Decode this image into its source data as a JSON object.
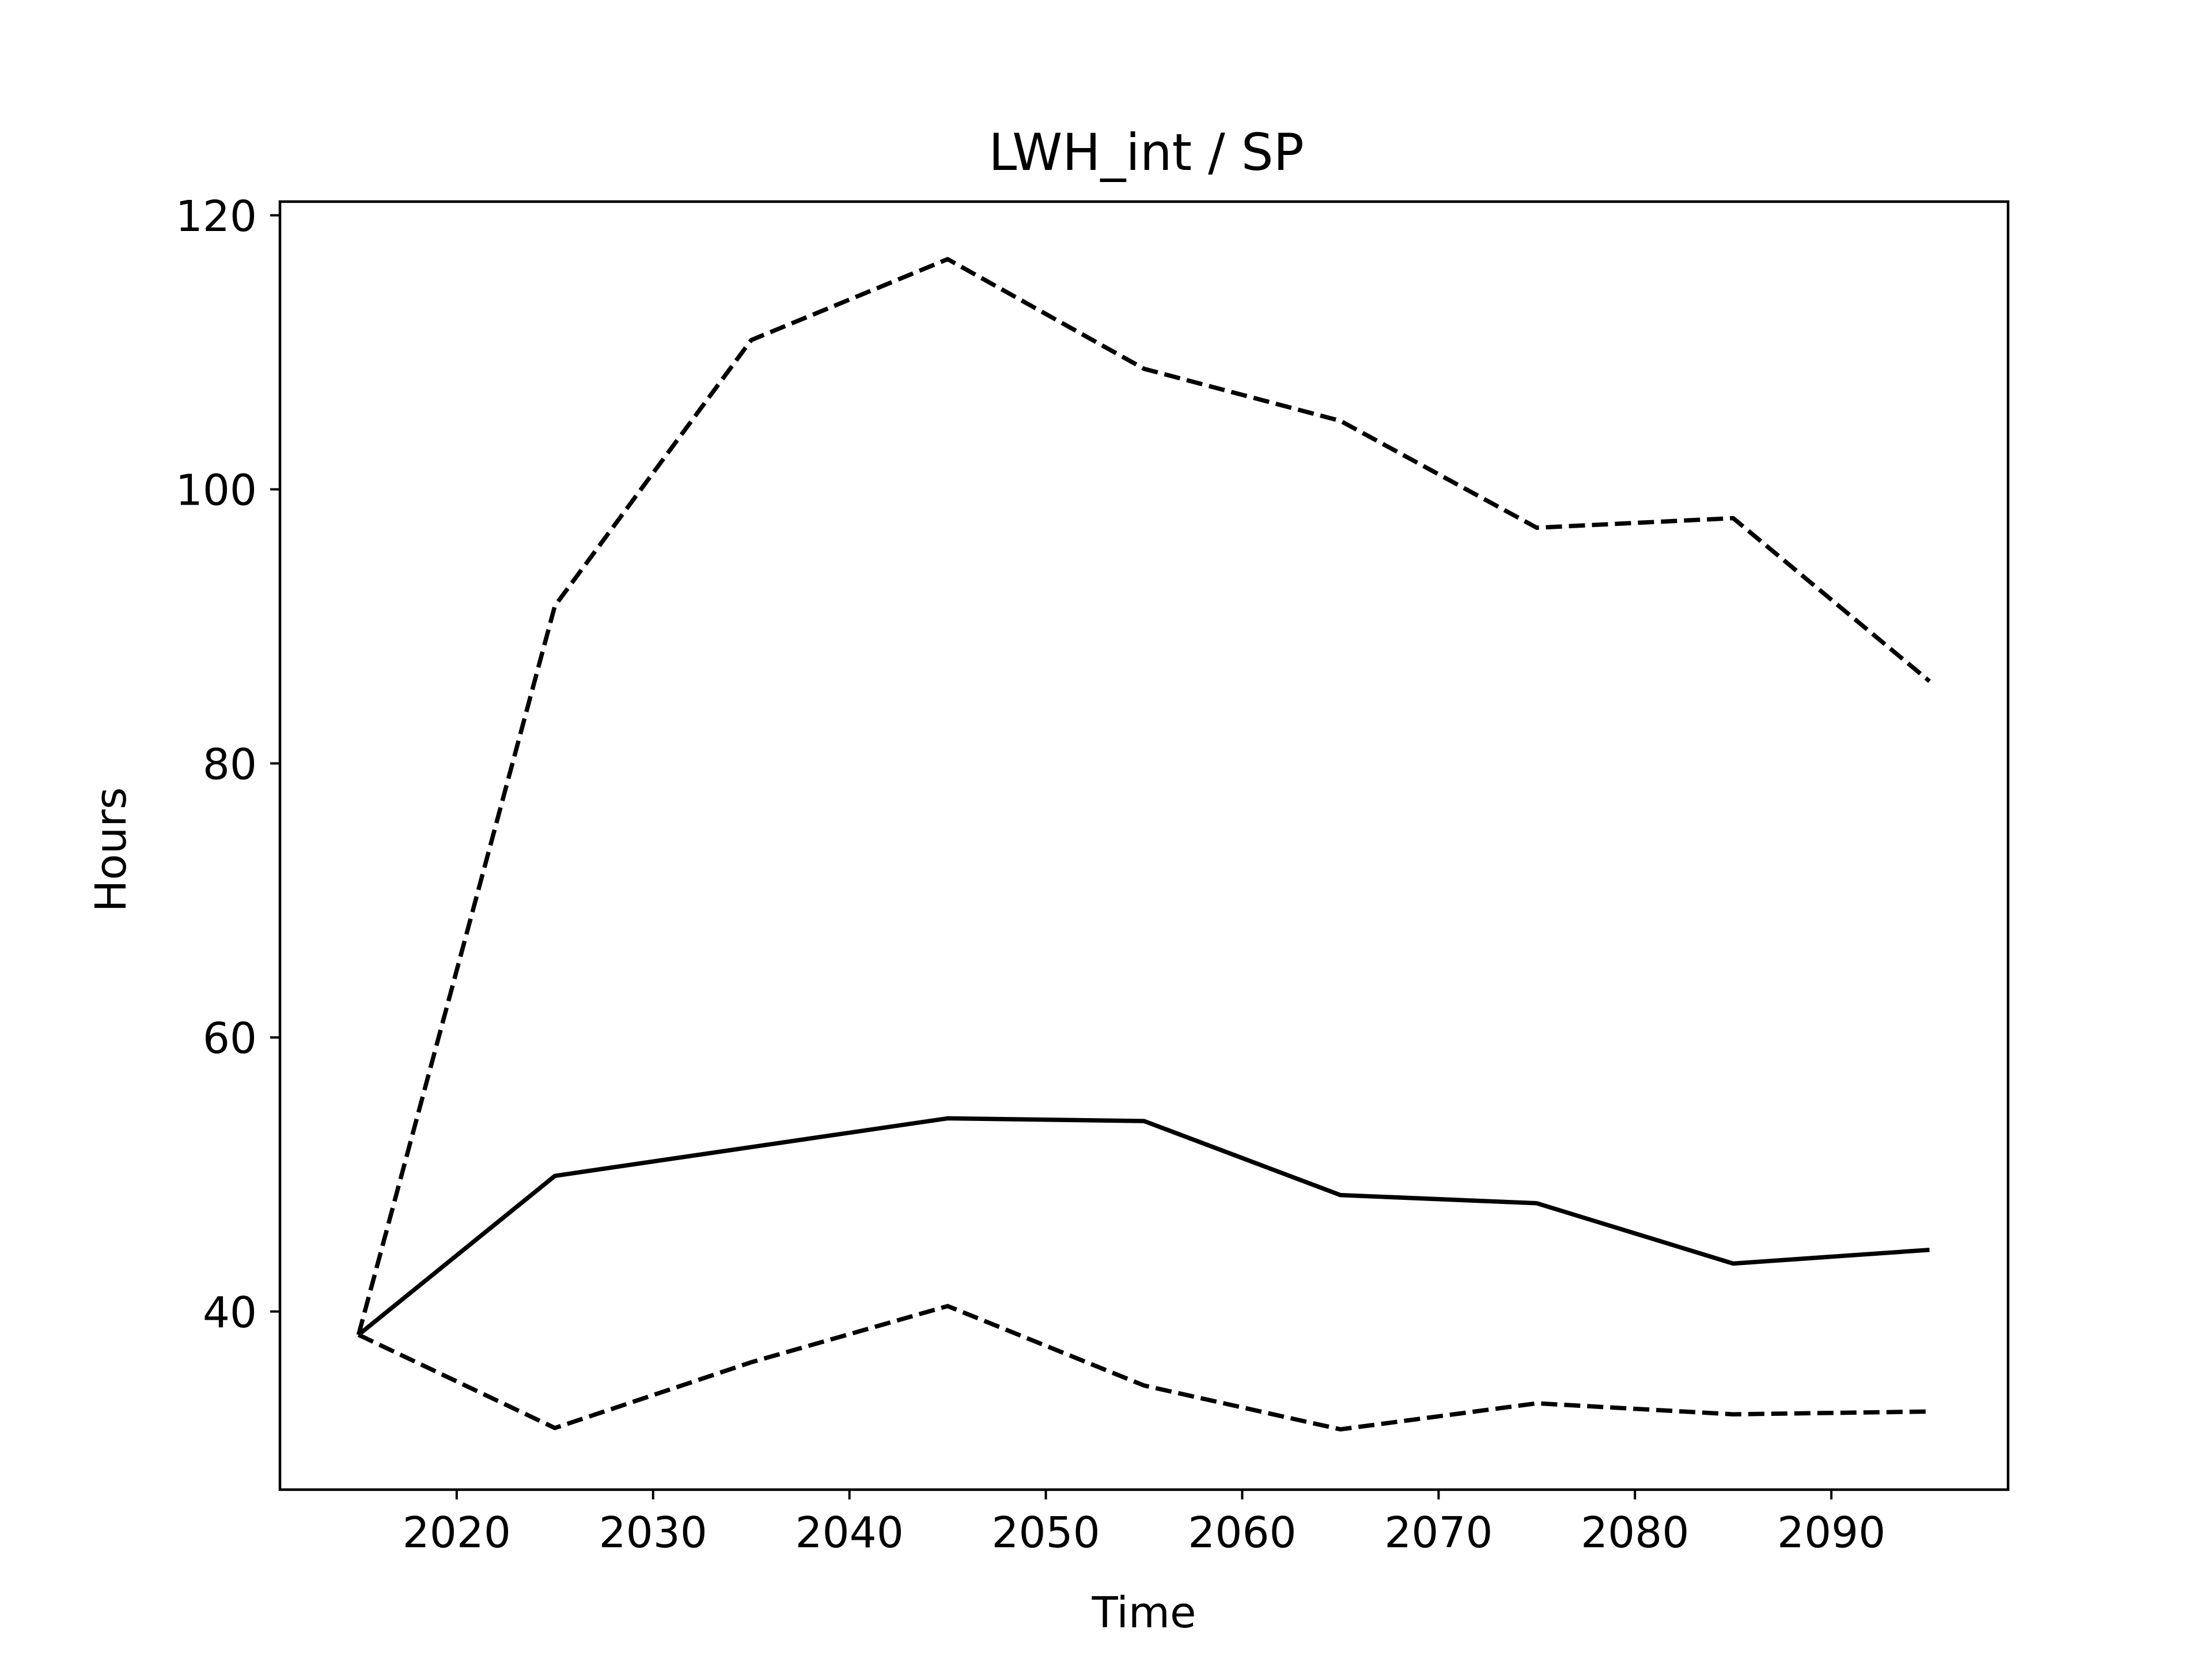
{
  "chart_data": {
    "type": "line",
    "title": "LWH_int / SP",
    "xlabel": "Time",
    "ylabel": "Hours",
    "xlim": [
      2011,
      2099
    ],
    "ylim": [
      27,
      121
    ],
    "xticks": [
      2020,
      2030,
      2040,
      2050,
      2060,
      2070,
      2080,
      2090
    ],
    "yticks": [
      40,
      60,
      80,
      100,
      120
    ],
    "grid": false,
    "legend": "none",
    "line_color": "#000000",
    "x": [
      2015,
      2025,
      2035,
      2045,
      2055,
      2065,
      2075,
      2085,
      2095
    ],
    "series": [
      {
        "style": "solid",
        "values": [
          38.3,
          49.9,
          52.0,
          54.1,
          53.9,
          48.5,
          47.9,
          43.5,
          44.5
        ]
      },
      {
        "style": "dashed",
        "values": [
          38.3,
          91.5,
          110.9,
          116.8,
          108.8,
          105.0,
          97.2,
          97.9,
          86.0
        ]
      },
      {
        "style": "dashed",
        "values": [
          38.3,
          31.5,
          36.3,
          40.4,
          34.6,
          31.4,
          33.3,
          32.5,
          32.7
        ]
      }
    ]
  }
}
